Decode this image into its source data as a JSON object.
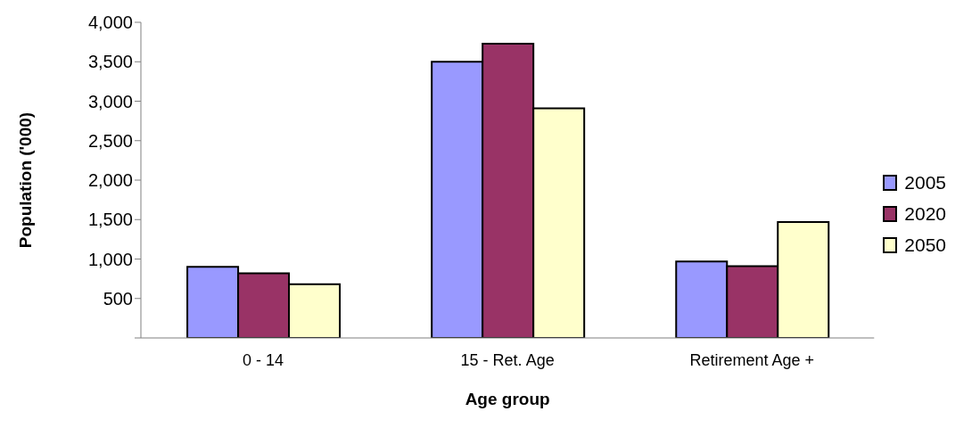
{
  "chart_data": {
    "type": "bar",
    "xlabel": "Age group",
    "ylabel": "Population ('000)",
    "categories": [
      "0 - 14",
      "15 - Ret. Age",
      "Retirement Age +"
    ],
    "series": [
      {
        "name": "2005",
        "color": "#9999ff",
        "values": [
          900,
          3500,
          970
        ]
      },
      {
        "name": "2020",
        "color": "#993366",
        "values": [
          820,
          3730,
          910
        ]
      },
      {
        "name": "2050",
        "color": "#ffffcc",
        "values": [
          680,
          2910,
          1470
        ]
      }
    ],
    "ylim": [
      0,
      4000
    ],
    "yticks": [
      {
        "value": 0,
        "label": null
      },
      {
        "value": 500,
        "label": "500"
      },
      {
        "value": 1000,
        "label": "1,000"
      },
      {
        "value": 1500,
        "label": "1,500"
      },
      {
        "value": 2000,
        "label": "2,000"
      },
      {
        "value": 2500,
        "label": "2,500"
      },
      {
        "value": 3000,
        "label": "3,000"
      },
      {
        "value": 3500,
        "label": "3,500"
      },
      {
        "value": 4000,
        "label": "4,000"
      }
    ],
    "grid": false,
    "legend": "right"
  }
}
